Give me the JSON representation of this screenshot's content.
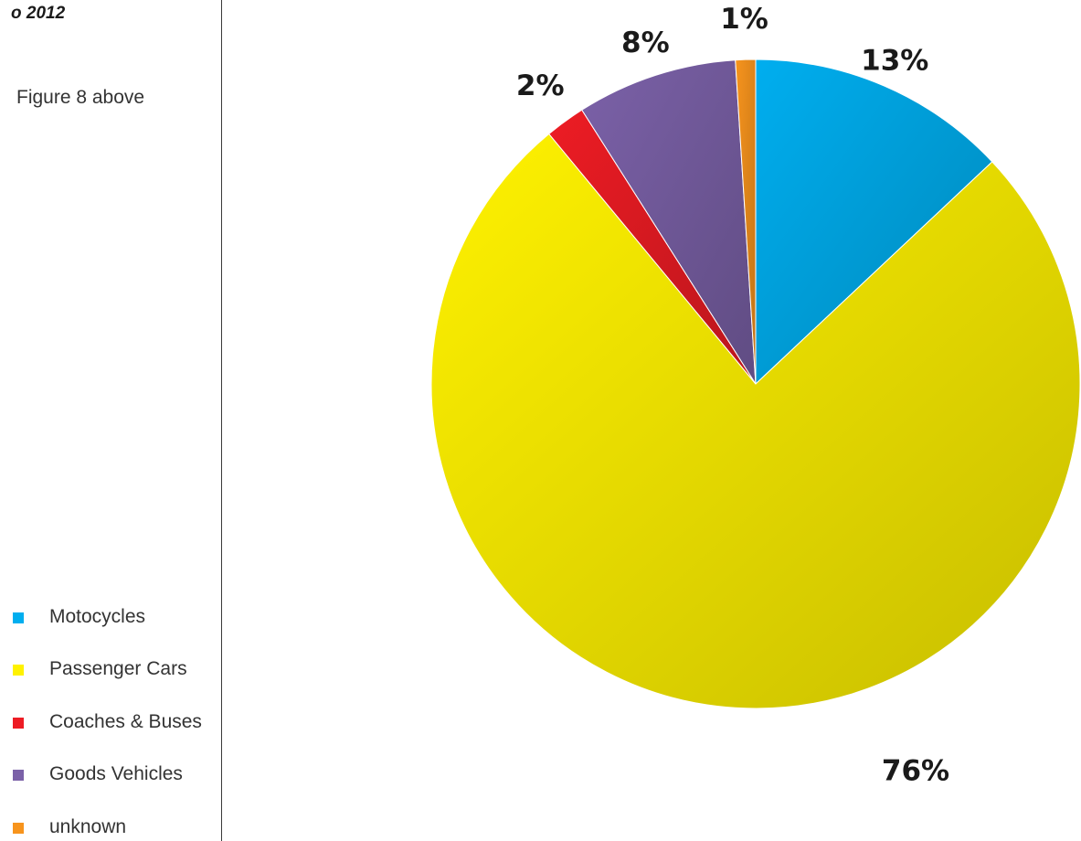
{
  "page": {
    "header_year": "o 2012",
    "figure_ref": "Figure 8 above"
  },
  "chart_data": {
    "type": "pie",
    "categories": [
      "Motocycles",
      "Passenger Cars",
      "Coaches & Buses",
      "Goods Vehicles",
      "unknown"
    ],
    "values": [
      13,
      76,
      2,
      8,
      1
    ],
    "data_labels": [
      "13%",
      "76%",
      "2%",
      "8%",
      "1%"
    ],
    "colors": [
      "#00AEEF",
      "#FFF200",
      "#ED1C24",
      "#7B61A8",
      "#F7941D"
    ],
    "legend_position": "bottom-left"
  }
}
